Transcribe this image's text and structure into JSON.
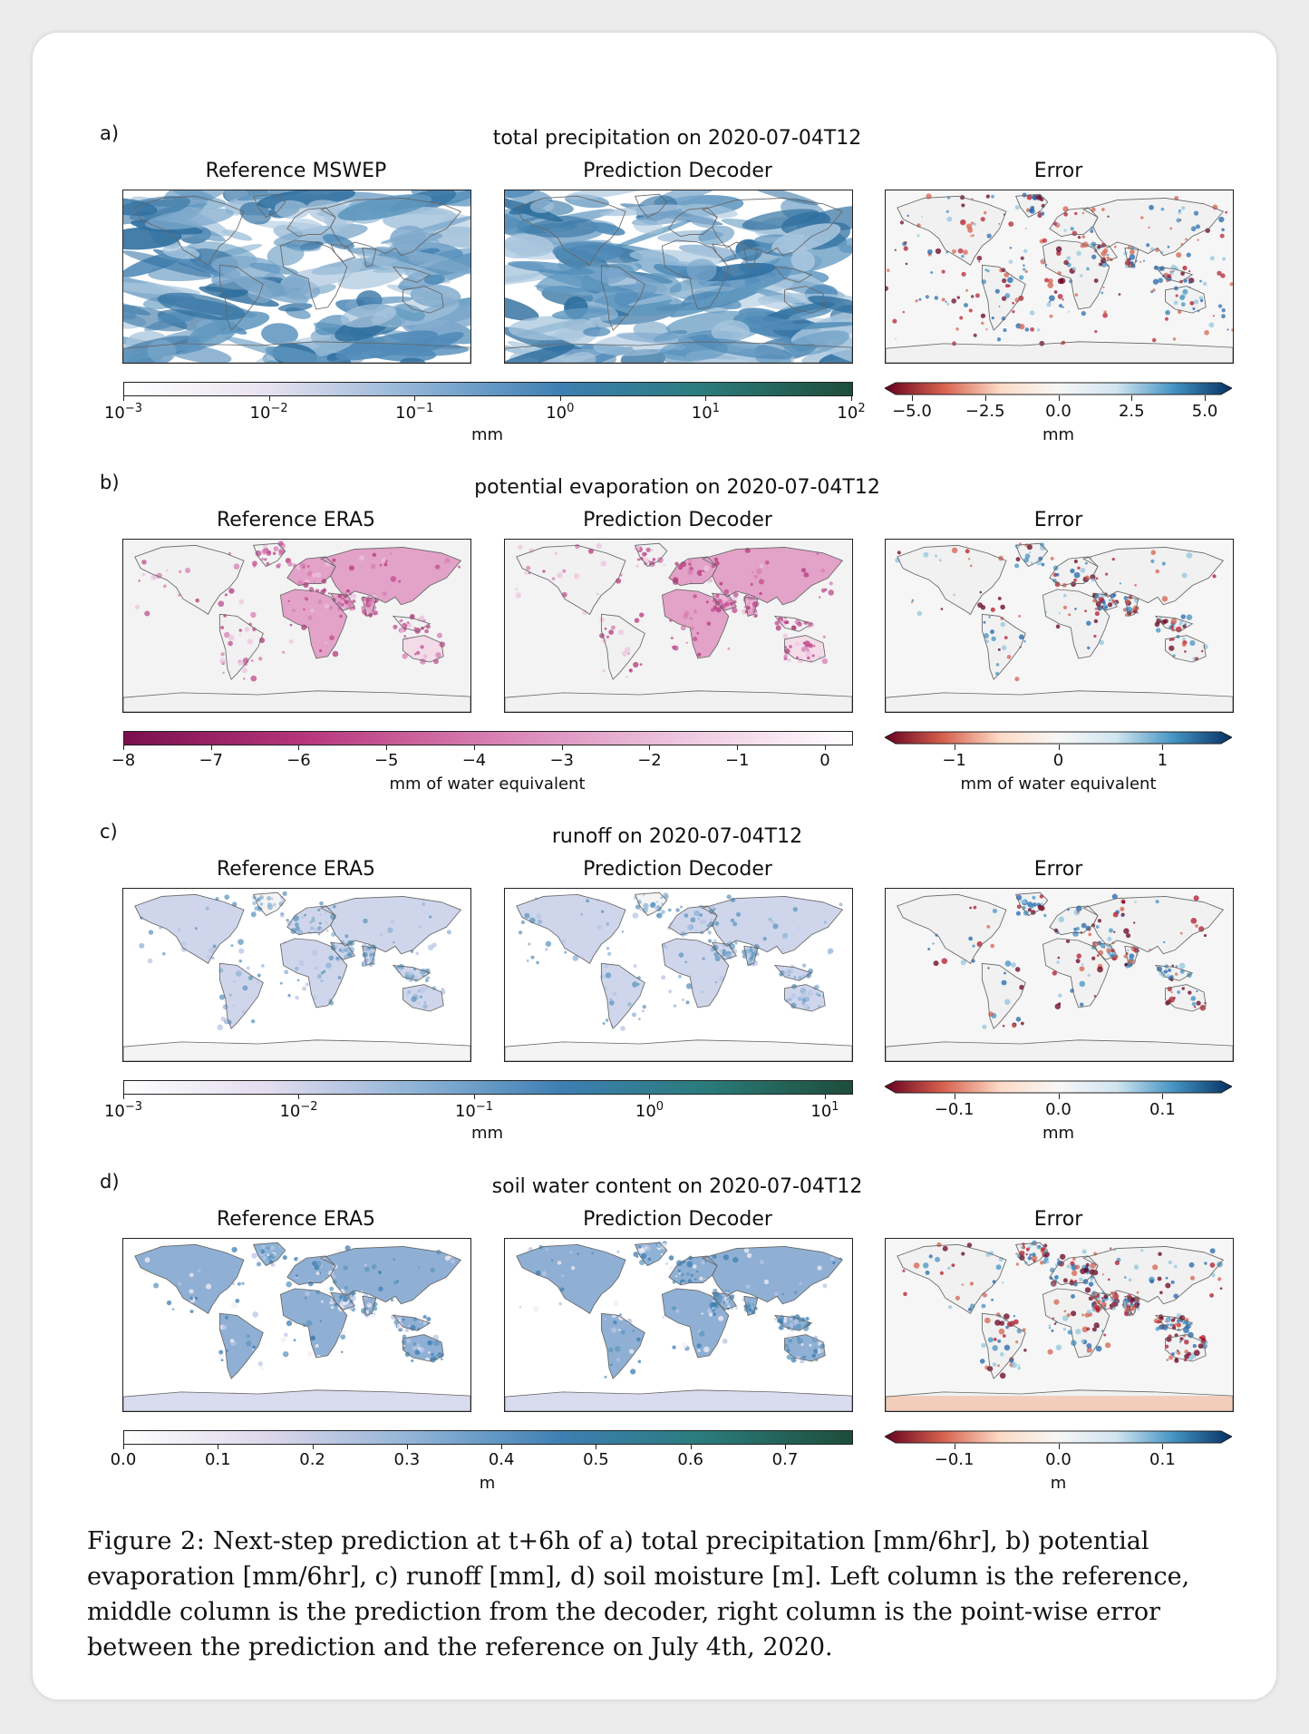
{
  "panels": [
    {
      "label": "a)",
      "title": "total precipitation on 2020-07-04T12",
      "subtitles": [
        "Reference MSWEP",
        "Prediction Decoder",
        "Error"
      ],
      "field": "precip",
      "cbar_main": {
        "scale": "log",
        "ticks": [
          "10^-3",
          "10^-2",
          "10^-1",
          "10^0",
          "10^1",
          "10^2"
        ],
        "unit": "mm",
        "colors": [
          "#ffffff",
          "#e7e1ef",
          "#8fb3d6",
          "#3d7fb3",
          "#2a7b7a",
          "#1e4d3a"
        ]
      },
      "cbar_err": {
        "ticks": [
          "−5.0",
          "−2.5",
          "0.0",
          "2.5",
          "5.0"
        ],
        "unit": "mm"
      }
    },
    {
      "label": "b)",
      "title": "potential evaporation on 2020-07-04T12",
      "subtitles": [
        "Reference ERA5",
        "Prediction Decoder",
        "Error"
      ],
      "field": "evap",
      "cbar_main": {
        "scale": "linear",
        "ticks": [
          "−8",
          "−7",
          "−6",
          "−5",
          "−4",
          "−3",
          "−2",
          "−1",
          "0"
        ],
        "unit": "mm of water equivalent",
        "colors": [
          "#7a0f4d",
          "#b7377c",
          "#d77eb3",
          "#ecc3dd",
          "#ffffff"
        ]
      },
      "cbar_err": {
        "ticks": [
          "−1",
          "0",
          "1"
        ],
        "unit": "mm of water equivalent"
      }
    },
    {
      "label": "c)",
      "title": "runoff on 2020-07-04T12",
      "subtitles": [
        "Reference ERA5",
        "Prediction Decoder",
        "Error"
      ],
      "field": "runoff",
      "cbar_main": {
        "scale": "log",
        "ticks": [
          "10^-3",
          "10^-2",
          "10^-1",
          "10^0",
          "10^1"
        ],
        "unit": "mm",
        "colors": [
          "#ffffff",
          "#e2dcef",
          "#8fb3d6",
          "#3d7fb3",
          "#2a7b7a",
          "#1e4d3a"
        ]
      },
      "cbar_err": {
        "ticks": [
          "−0.1",
          "0.0",
          "0.1"
        ],
        "unit": "mm"
      }
    },
    {
      "label": "d)",
      "title": "soil water content on 2020-07-04T12",
      "subtitles": [
        "Reference ERA5",
        "Prediction Decoder",
        "Error"
      ],
      "field": "soil",
      "cbar_main": {
        "scale": "linear",
        "ticks": [
          "0.0",
          "0.1",
          "0.2",
          "0.3",
          "0.4",
          "0.5",
          "0.6",
          "0.7"
        ],
        "unit": "m",
        "colors": [
          "#ffffff",
          "#dcd6ea",
          "#8fb3d6",
          "#3d7fb3",
          "#2a7b7a",
          "#1e4d3a"
        ]
      },
      "cbar_err": {
        "ticks": [
          "−0.1",
          "0.0",
          "0.1"
        ],
        "unit": "m"
      }
    }
  ],
  "error_colors": [
    "#67001f",
    "#d6604d",
    "#fddbc7",
    "#f7f7f7",
    "#d1e5f0",
    "#4393c3",
    "#053061"
  ],
  "caption": {
    "prefix": "Figure  2:",
    "text": "Next-step prediction at t+6h of a) total precipitation [mm/6hr], b) potential evaporation [mm/6hr], c) runoff [mm], d) soil moisture [m]. Left column is the reference, middle column is the prediction from the decoder, right column is the point-wise error between the prediction and the reference on July 4th, 2020."
  }
}
